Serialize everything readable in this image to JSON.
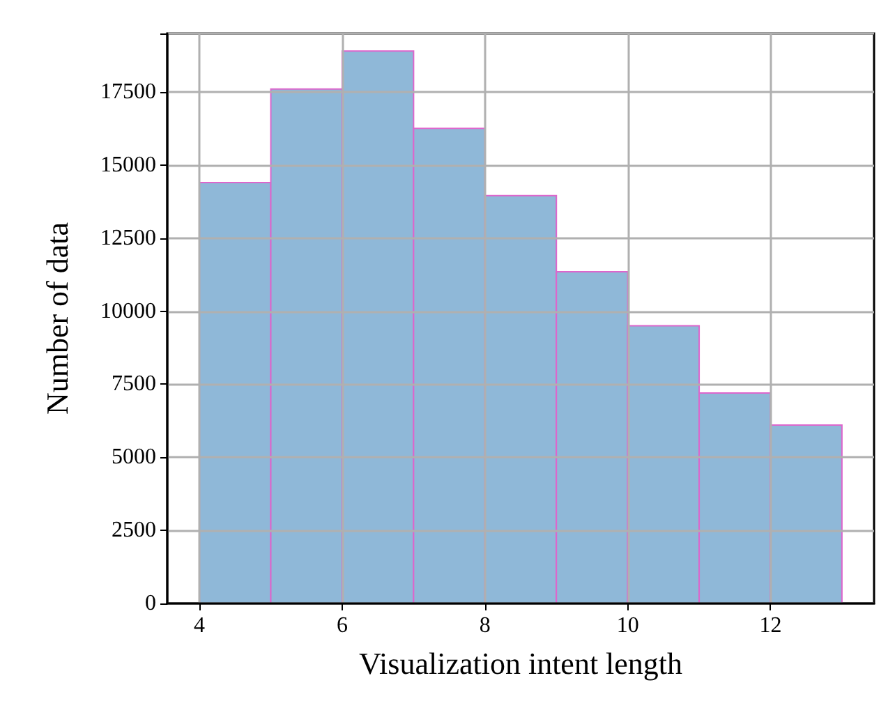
{
  "chart_data": {
    "type": "histogram",
    "xlabel": "Visualization intent length",
    "ylabel": "Number of data",
    "bins": [
      4,
      5,
      6,
      7,
      8,
      9,
      10,
      11,
      12,
      13
    ],
    "values": [
      14400,
      17600,
      18900,
      16250,
      13950,
      11350,
      9500,
      7200,
      6100
    ],
    "color": "#8fb8d8",
    "xlim": [
      3.55,
      13.45
    ],
    "xticks": [
      4,
      6,
      8,
      10,
      12
    ],
    "ylim": [
      0,
      19500
    ],
    "yticks": [
      0,
      2500,
      5000,
      7500,
      10000,
      12500,
      15000,
      17500
    ],
    "grid": true
  }
}
